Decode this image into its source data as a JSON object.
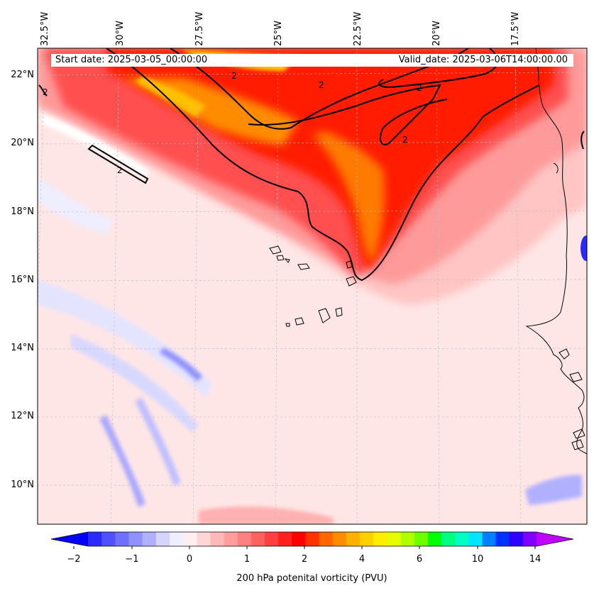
{
  "map": {
    "start_date": "Start date: 2025-03-05_00:00:00",
    "valid_date": "Valid_date: 2025-03-06T14:00:00.00",
    "lon_labels": [
      "32.5°W",
      "30°W",
      "27.5°W",
      "25°W",
      "22.5°W",
      "20°W",
      "17.5°W"
    ],
    "lat_labels": [
      "22°N",
      "20°N",
      "18°N",
      "16°N",
      "14°N",
      "12°N",
      "10°N"
    ],
    "contour_label": "2"
  },
  "colorbar": {
    "label": "200 hPa potenital vorticity (PVU)",
    "ticks": [
      "−2",
      "−1",
      "0",
      "1",
      "2",
      "4",
      "6",
      "10",
      "14"
    ],
    "colors": [
      "#0000ff",
      "#2a2aff",
      "#5050ff",
      "#7070ff",
      "#9090ff",
      "#b0b0ff",
      "#d4d4ff",
      "#eeeeff",
      "#ffeeee",
      "#ffd6d6",
      "#ffb8b8",
      "#ff9c9c",
      "#ff8080",
      "#ff6060",
      "#ff4040",
      "#ff2020",
      "#ff0000",
      "#ff3300",
      "#ff6600",
      "#ff8c00",
      "#ffb000",
      "#ffd000",
      "#ffee00",
      "#e6ff00",
      "#b0ff00",
      "#70ff00",
      "#00ff00",
      "#00ff80",
      "#00ffc0",
      "#00e5ff",
      "#0080ff",
      "#0030ff",
      "#3000ff",
      "#8000ff",
      "#c000ff"
    ]
  }
}
